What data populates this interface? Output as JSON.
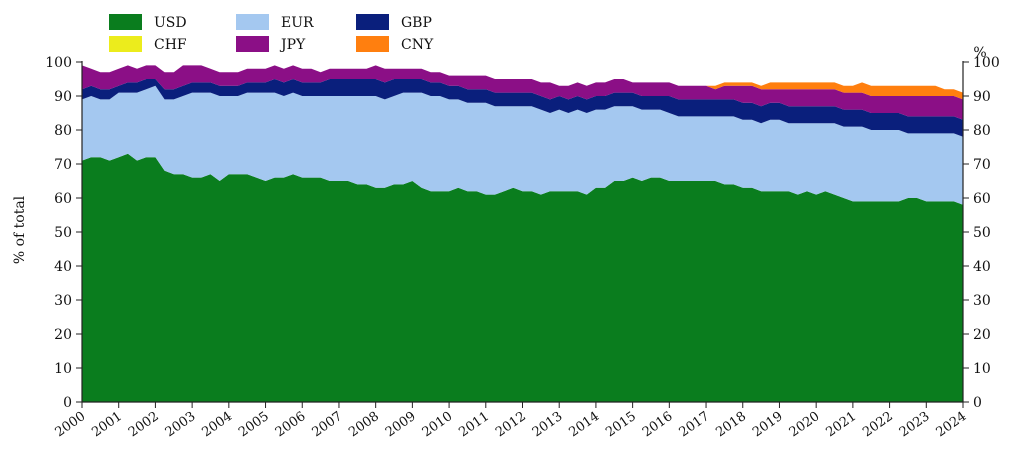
{
  "chart_data": {
    "type": "area",
    "stacked": true,
    "xlabel": "",
    "ylabel": "% of total",
    "ylabel_right": "%",
    "ylim": [
      0,
      100
    ],
    "yticks": [
      0,
      10,
      20,
      30,
      40,
      50,
      60,
      70,
      80,
      90,
      100
    ],
    "xlim": [
      2000,
      2024
    ],
    "xticks": [
      2000,
      2001,
      2002,
      2003,
      2004,
      2005,
      2006,
      2007,
      2008,
      2009,
      2010,
      2011,
      2012,
      2013,
      2014,
      2015,
      2016,
      2017,
      2018,
      2019,
      2020,
      2021,
      2022,
      2023,
      2024
    ],
    "grid": false,
    "legend_position": "top-left",
    "legend_order": [
      "USD",
      "EUR",
      "GBP",
      "CHF",
      "JPY",
      "CNY"
    ],
    "x": [
      2000,
      2000.25,
      2000.5,
      2000.75,
      2001,
      2001.25,
      2001.5,
      2001.75,
      2002,
      2002.25,
      2002.5,
      2002.75,
      2003,
      2003.25,
      2003.5,
      2003.75,
      2004,
      2004.25,
      2004.5,
      2004.75,
      2005,
      2005.25,
      2005.5,
      2005.75,
      2006,
      2006.25,
      2006.5,
      2006.75,
      2007,
      2007.25,
      2007.5,
      2007.75,
      2008,
      2008.25,
      2008.5,
      2008.75,
      2009,
      2009.25,
      2009.5,
      2009.75,
      2010,
      2010.25,
      2010.5,
      2010.75,
      2011,
      2011.25,
      2011.5,
      2011.75,
      2012,
      2012.25,
      2012.5,
      2012.75,
      2013,
      2013.25,
      2013.5,
      2013.75,
      2014,
      2014.25,
      2014.5,
      2014.75,
      2015,
      2015.25,
      2015.5,
      2015.75,
      2016,
      2016.25,
      2016.5,
      2016.75,
      2017,
      2017.25,
      2017.5,
      2017.75,
      2018,
      2018.25,
      2018.5,
      2018.75,
      2019,
      2019.25,
      2019.5,
      2019.75,
      2020,
      2020.25,
      2020.5,
      2020.75,
      2021,
      2021.25,
      2021.5,
      2021.75,
      2022,
      2022.25,
      2022.5,
      2022.75,
      2023,
      2023.25,
      2023.5,
      2023.75,
      2024
    ],
    "series": [
      {
        "name": "USD",
        "color": "#0a7d1e",
        "values": [
          71,
          72,
          72,
          71,
          72,
          73,
          71,
          72,
          72,
          68,
          67,
          67,
          66,
          66,
          67,
          65,
          67,
          67,
          67,
          66,
          65,
          66,
          66,
          67,
          66,
          66,
          66,
          65,
          65,
          65,
          64,
          64,
          63,
          63,
          64,
          64,
          65,
          63,
          62,
          62,
          62,
          63,
          62,
          62,
          61,
          61,
          62,
          63,
          62,
          62,
          61,
          62,
          62,
          62,
          62,
          61,
          63,
          63,
          65,
          65,
          66,
          65,
          66,
          66,
          65,
          65,
          65,
          65,
          65,
          65,
          64,
          64,
          63,
          63,
          62,
          62,
          62,
          62,
          61,
          62,
          61,
          62,
          61,
          60,
          59,
          59,
          59,
          59,
          59,
          59,
          60,
          60,
          59,
          59,
          59,
          59,
          58
        ]
      },
      {
        "name": "EUR",
        "color": "#a4c8f0",
        "values": [
          18,
          18,
          17,
          18,
          19,
          18,
          20,
          20,
          21,
          21,
          22,
          23,
          25,
          25,
          24,
          25,
          23,
          23,
          24,
          25,
          26,
          25,
          24,
          24,
          24,
          24,
          24,
          25,
          25,
          25,
          26,
          26,
          27,
          26,
          26,
          27,
          26,
          28,
          28,
          28,
          27,
          26,
          26,
          26,
          27,
          26,
          25,
          24,
          25,
          25,
          25,
          23,
          24,
          23,
          24,
          24,
          23,
          23,
          22,
          22,
          21,
          21,
          20,
          20,
          20,
          19,
          19,
          19,
          19,
          19,
          20,
          20,
          20,
          20,
          20,
          21,
          21,
          20,
          21,
          20,
          21,
          20,
          21,
          21,
          22,
          22,
          21,
          21,
          21,
          21,
          19,
          19,
          20,
          20,
          20,
          20,
          20
        ]
      },
      {
        "name": "GBP",
        "color": "#0a1f7c",
        "values": [
          3,
          3,
          3,
          3,
          2,
          3,
          3,
          3,
          2,
          3,
          3,
          3,
          3,
          3,
          3,
          3,
          3,
          3,
          3,
          3,
          3,
          4,
          4,
          4,
          4,
          4,
          4,
          5,
          5,
          5,
          5,
          5,
          5,
          5,
          5,
          4,
          4,
          4,
          4,
          4,
          4,
          4,
          4,
          4,
          4,
          4,
          4,
          4,
          4,
          4,
          4,
          4,
          4,
          4,
          4,
          4,
          4,
          4,
          4,
          4,
          4,
          4,
          4,
          4,
          5,
          5,
          5,
          5,
          5,
          5,
          5,
          5,
          5,
          5,
          5,
          5,
          5,
          5,
          5,
          5,
          5,
          5,
          5,
          5,
          5,
          5,
          5,
          5,
          5,
          5,
          5,
          5,
          5,
          5,
          5,
          5,
          5
        ]
      },
      {
        "name": "CHF",
        "color": "#ecec1c",
        "values": [
          0,
          0,
          0,
          0,
          0,
          0,
          0,
          0,
          0,
          0,
          0,
          0,
          0,
          0,
          0,
          0,
          0,
          0,
          0,
          0,
          0,
          0,
          0,
          0,
          0,
          0,
          0,
          0,
          0,
          0,
          0,
          0,
          0,
          0,
          0,
          0,
          0,
          0,
          0,
          0,
          0,
          0,
          0,
          0,
          0,
          0,
          0,
          0,
          0,
          0,
          0,
          0,
          0,
          0,
          0,
          0,
          0,
          0,
          0,
          0,
          0,
          0,
          0,
          0,
          0,
          0,
          0,
          0,
          0,
          0,
          0,
          0,
          0,
          0,
          0,
          0,
          0,
          0,
          0,
          0,
          0,
          0,
          0,
          0,
          0,
          0,
          0,
          0,
          0,
          0,
          0,
          0,
          0,
          0,
          0,
          0,
          0
        ]
      },
      {
        "name": "JPY",
        "color": "#8b0f86",
        "values": [
          7,
          5,
          5,
          5,
          5,
          5,
          4,
          4,
          4,
          5,
          5,
          6,
          5,
          5,
          4,
          4,
          4,
          4,
          4,
          4,
          4,
          4,
          4,
          4,
          4,
          4,
          3,
          3,
          3,
          3,
          3,
          3,
          4,
          4,
          3,
          3,
          3,
          3,
          3,
          3,
          3,
          3,
          4,
          4,
          4,
          4,
          4,
          4,
          4,
          4,
          4,
          5,
          3,
          4,
          4,
          4,
          4,
          4,
          4,
          4,
          3,
          4,
          4,
          4,
          4,
          4,
          4,
          4,
          4,
          3,
          4,
          4,
          5,
          5,
          5,
          4,
          4,
          5,
          5,
          5,
          5,
          5,
          5,
          5,
          5,
          5,
          5,
          5,
          5,
          5,
          6,
          6,
          6,
          6,
          6,
          6,
          6
        ]
      },
      {
        "name": "CNY",
        "color": "#ff7f0f",
        "values": [
          0,
          0,
          0,
          0,
          0,
          0,
          0,
          0,
          0,
          0,
          0,
          0,
          0,
          0,
          0,
          0,
          0,
          0,
          0,
          0,
          0,
          0,
          0,
          0,
          0,
          0,
          0,
          0,
          0,
          0,
          0,
          0,
          0,
          0,
          0,
          0,
          0,
          0,
          0,
          0,
          0,
          0,
          0,
          0,
          0,
          0,
          0,
          0,
          0,
          0,
          0,
          0,
          0,
          0,
          0,
          0,
          0,
          0,
          0,
          0,
          0,
          0,
          0,
          0,
          0,
          0,
          0,
          0,
          0,
          1,
          1,
          1,
          1,
          1,
          1,
          2,
          2,
          2,
          2,
          2,
          2,
          2,
          2,
          2,
          2,
          3,
          3,
          3,
          3,
          3,
          3,
          3,
          3,
          3,
          2,
          2,
          2
        ]
      }
    ]
  }
}
